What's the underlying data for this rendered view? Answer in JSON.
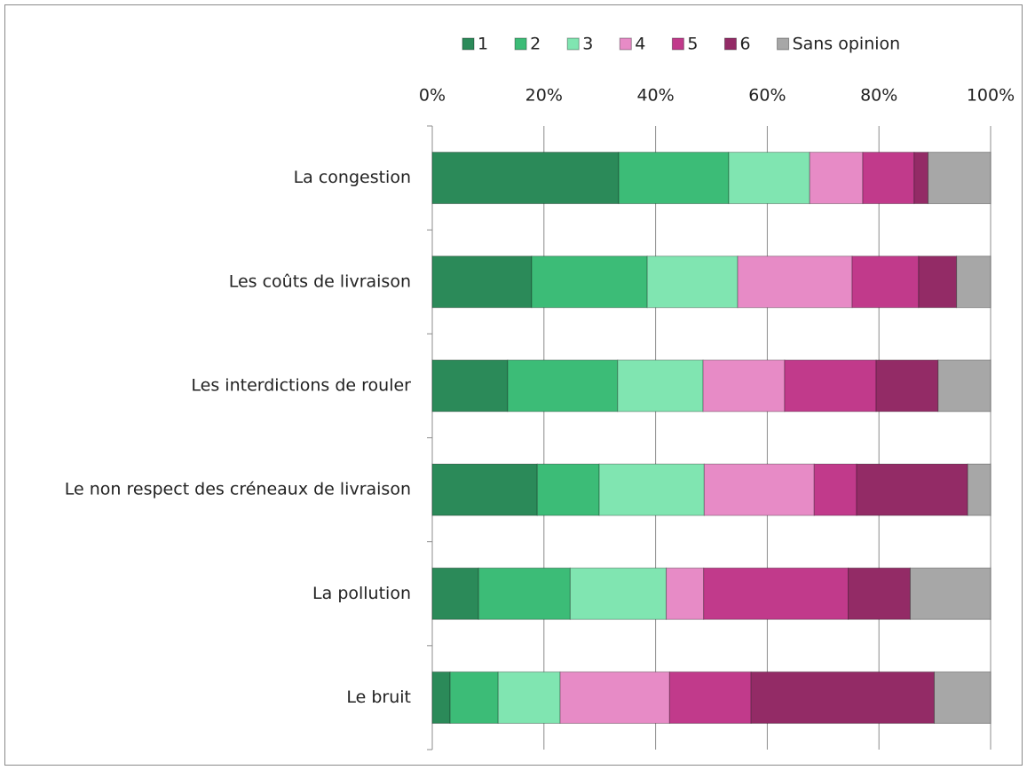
{
  "chart_data": {
    "type": "stacked_bar_horizontal",
    "categories": [
      "La congestion",
      "Les coûts de livraison",
      "Les interdictions de rouler",
      "Le non respect des créneaux de livraison",
      "La pollution",
      "Le bruit"
    ],
    "series": [
      {
        "name": "1",
        "color": "#2b8a59",
        "values": [
          33.4,
          17.8,
          13.5,
          18.8,
          8.3,
          3.2
        ]
      },
      {
        "name": "2",
        "color": "#3cbc77",
        "values": [
          19.7,
          20.7,
          19.7,
          11.1,
          16.4,
          8.6
        ]
      },
      {
        "name": "3",
        "color": "#80e5b1",
        "values": [
          14.5,
          16.2,
          15.3,
          18.8,
          17.2,
          11.1
        ]
      },
      {
        "name": "4",
        "color": "#e78bc6",
        "values": [
          9.5,
          20.5,
          14.6,
          19.7,
          6.7,
          19.6
        ]
      },
      {
        "name": "5",
        "color": "#c13a8b",
        "values": [
          9.2,
          11.9,
          16.4,
          7.6,
          25.9,
          14.6
        ]
      },
      {
        "name": "6",
        "color": "#932b66",
        "values": [
          2.5,
          6.8,
          11.1,
          19.9,
          11.1,
          32.8
        ]
      },
      {
        "name": "Sans opinion",
        "color": "#a7a7a7",
        "values": [
          11.2,
          6.1,
          9.4,
          4.1,
          14.4,
          10.1
        ]
      }
    ],
    "xlim": [
      0,
      100
    ],
    "xticks": [
      {
        "value": 0,
        "label": "0%"
      },
      {
        "value": 20,
        "label": "20%"
      },
      {
        "value": 40,
        "label": "40%"
      },
      {
        "value": 60,
        "label": "60%"
      },
      {
        "value": 80,
        "label": "80%"
      },
      {
        "value": 100,
        "label": "100%"
      }
    ],
    "grid": true,
    "legend": "top"
  }
}
